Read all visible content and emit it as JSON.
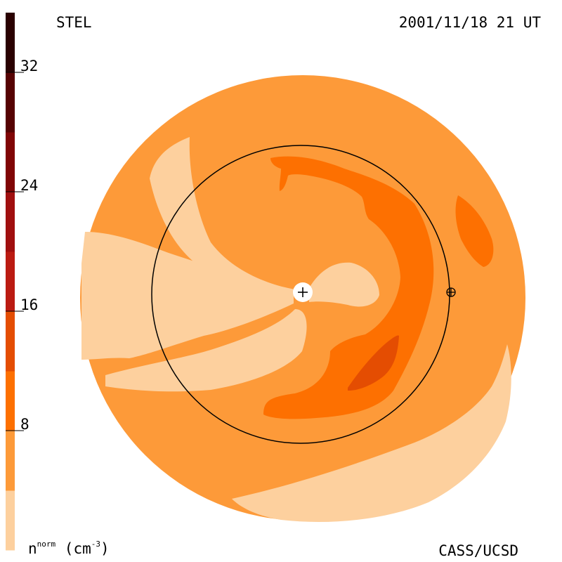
{
  "header": {
    "observatory": "STEL",
    "timestamp": "2001/11/18 21 UT"
  },
  "footer": {
    "institution": "CASS/UCSD"
  },
  "colorbar": {
    "unit_base": "n",
    "unit_sup": "norm",
    "unit_paren_open": " (cm",
    "unit_exp": "-3",
    "unit_paren_close": ")",
    "ticks": [
      {
        "value": 8,
        "label": "8"
      },
      {
        "value": 16,
        "label": "16"
      },
      {
        "value": 24,
        "label": "24"
      },
      {
        "value": 32,
        "label": "32"
      }
    ],
    "range": [
      0,
      36
    ],
    "levels": [
      {
        "from": 0,
        "to": 4,
        "color": "#fdd09e"
      },
      {
        "from": 4,
        "to": 8,
        "color": "#fd9a39"
      },
      {
        "from": 8,
        "to": 12,
        "color": "#fd7001"
      },
      {
        "from": 12,
        "to": 16,
        "color": "#e44d02"
      },
      {
        "from": 16,
        "to": 20,
        "color": "#bb1b12"
      },
      {
        "from": 20,
        "to": 24,
        "color": "#a00f0f"
      },
      {
        "from": 24,
        "to": 28,
        "color": "#800505"
      },
      {
        "from": 28,
        "to": 32,
        "color": "#560202"
      },
      {
        "from": 32,
        "to": 36,
        "color": "#2a0101"
      }
    ]
  },
  "chart_data": {
    "type": "heatmap",
    "title": "",
    "quantity": "normalized solar wind density",
    "view": "ecliptic plane, polar view",
    "markers": [
      {
        "name": "sun",
        "symbol": "+"
      },
      {
        "name": "earth",
        "symbol": "circled-plus"
      }
    ],
    "reference_circle": "Earth orbit (1 AU)"
  }
}
